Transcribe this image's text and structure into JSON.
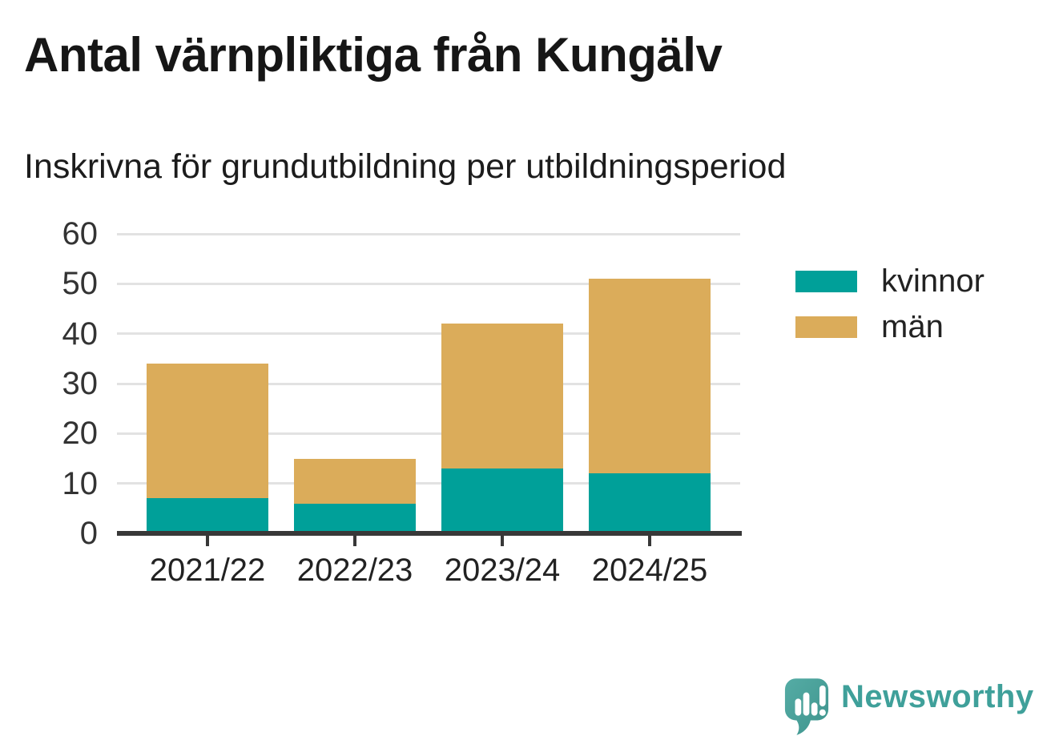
{
  "title": "Antal värnpliktiga från Kungälv",
  "subtitle": "Inskrivna för grundutbildning per utbildningsperiod",
  "legend": {
    "items": [
      {
        "label": "kvinnor",
        "color": "#00A099"
      },
      {
        "label": "män",
        "color": "#DBAC5A"
      }
    ]
  },
  "footer": {
    "brand": "Newsworthy",
    "logo_icon": "newsworthy-speech-bubble-chart-icon",
    "brand_color": "#3FA09A",
    "logo_fill_light": "#55ACA5",
    "logo_fill_dark": "#3E948D"
  },
  "colors": {
    "background": "#FFFFFF",
    "kvinnor": "#00A099",
    "man": "#DBAC5A",
    "gridline": "#E2E2E2",
    "axis": "#383838",
    "text": "#222222"
  },
  "chart_data": {
    "type": "bar",
    "stacked": true,
    "title": "Antal värnpliktiga från Kungälv",
    "subtitle": "Inskrivna för grundutbildning per utbildningsperiod",
    "categories": [
      "2021/22",
      "2022/23",
      "2023/24",
      "2024/25"
    ],
    "series": [
      {
        "name": "kvinnor",
        "color": "#00A099",
        "values": [
          7,
          6,
          13,
          12
        ]
      },
      {
        "name": "män",
        "color": "#DBAC5A",
        "values": [
          27,
          9,
          29,
          39
        ]
      }
    ],
    "totals": [
      34,
      15,
      42,
      51
    ],
    "xlabel": "",
    "ylabel": "",
    "ylim": [
      0,
      60
    ],
    "yticks": [
      0,
      10,
      20,
      30,
      40,
      50,
      60
    ],
    "grid": true,
    "legend_position": "right"
  }
}
